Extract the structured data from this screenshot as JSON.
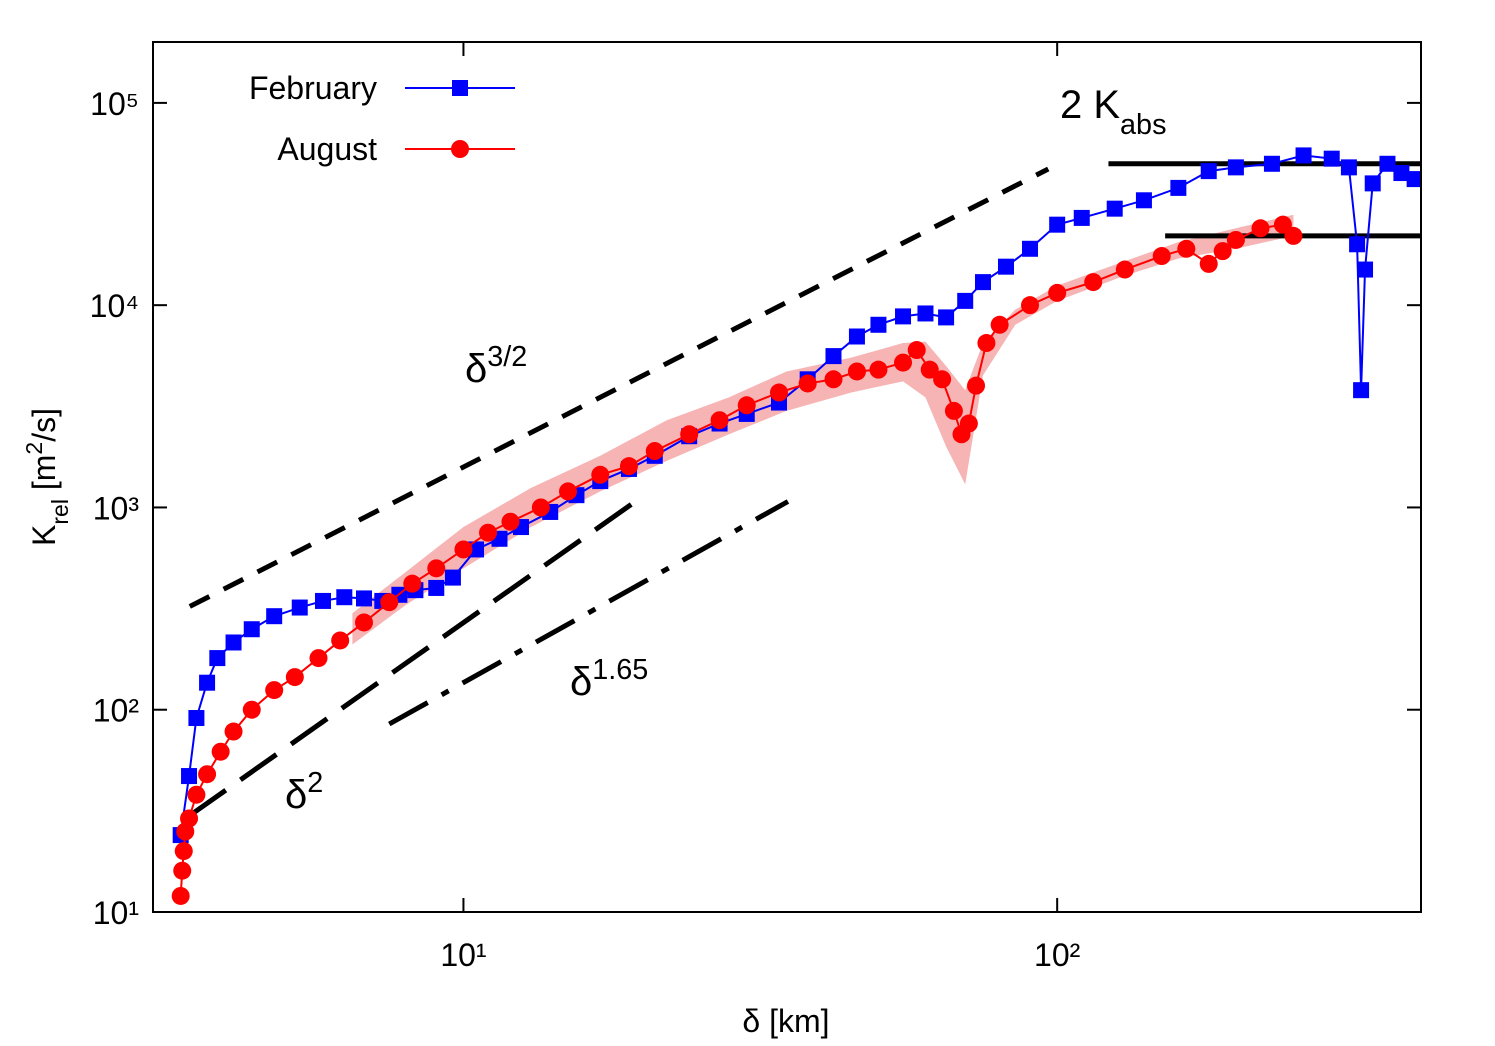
{
  "chart_data": {
    "type": "line",
    "x_label": "δ [km]",
    "y_label": {
      "base": "K",
      "sub": "rel",
      "text": " [m",
      "sup": "2",
      "end": "/s]"
    },
    "xscale": "log",
    "yscale": "log",
    "xlim": [
      3,
      410
    ],
    "ylim": [
      10,
      200000
    ],
    "xticks": [
      {
        "value": 10,
        "label": "10¹"
      },
      {
        "value": 100,
        "label": "10²"
      }
    ],
    "yticks": [
      {
        "value": 10,
        "label": "10¹"
      },
      {
        "value": 100,
        "label": "10²"
      },
      {
        "value": 1000,
        "label": "10³"
      },
      {
        "value": 10000,
        "label": "10⁴"
      },
      {
        "value": 100000,
        "label": "10⁵"
      }
    ],
    "legend": "top-left",
    "series": [
      {
        "name": "February",
        "color": "#0000ff",
        "marker": "square",
        "x": [
          3.34,
          3.45,
          3.55,
          3.7,
          3.85,
          4.1,
          4.4,
          4.8,
          5.3,
          5.8,
          6.3,
          6.8,
          7.3,
          7.8,
          8.3,
          9,
          9.6,
          10.5,
          11.5,
          12.5,
          14,
          15.5,
          17,
          19,
          21,
          24,
          27,
          30,
          34,
          38,
          42,
          46,
          50,
          55,
          60,
          65,
          70,
          75,
          82,
          90,
          100,
          110,
          125,
          140,
          160,
          180,
          200,
          230,
          260,
          290,
          310,
          320,
          325,
          330,
          340,
          360,
          380,
          400
        ],
        "values": [
          24,
          47,
          91,
          136,
          180,
          215,
          250,
          290,
          320,
          345,
          360,
          355,
          345,
          370,
          390,
          400,
          450,
          620,
          700,
          800,
          950,
          1150,
          1350,
          1550,
          1800,
          2250,
          2600,
          2900,
          3300,
          4300,
          5600,
          7000,
          8000,
          8800,
          9100,
          8700,
          10500,
          13000,
          15500,
          19000,
          25000,
          27000,
          30000,
          33000,
          38000,
          46000,
          48000,
          50000,
          55000,
          53000,
          48000,
          20000,
          3800,
          15000,
          40000,
          50000,
          45000,
          42000
        ]
      },
      {
        "name": "August",
        "color": "#ff0000",
        "marker": "circle",
        "x": [
          3.34,
          3.36,
          3.38,
          3.4,
          3.45,
          3.55,
          3.7,
          3.9,
          4.1,
          4.4,
          4.8,
          5.2,
          5.7,
          6.2,
          6.8,
          7.5,
          8.2,
          9,
          10,
          11,
          12,
          13.5,
          15,
          17,
          19,
          21,
          24,
          27,
          30,
          34,
          38,
          42,
          46,
          50,
          55,
          58,
          61,
          64,
          67,
          69,
          71,
          73,
          76,
          80,
          90,
          100,
          115,
          130,
          150,
          165,
          180,
          190,
          200,
          220,
          240,
          250
        ],
        "values": [
          12,
          16,
          20,
          25,
          29,
          38,
          48,
          62,
          78,
          100,
          125,
          145,
          180,
          220,
          270,
          340,
          420,
          500,
          620,
          750,
          850,
          1000,
          1200,
          1450,
          1600,
          1900,
          2300,
          2700,
          3200,
          3700,
          4100,
          4300,
          4700,
          4800,
          5200,
          6000,
          4800,
          4300,
          3000,
          2300,
          2600,
          4000,
          6500,
          8000,
          10000,
          11500,
          13000,
          15000,
          17500,
          19000,
          16000,
          18500,
          21000,
          24000,
          25000,
          22000
        ]
      }
    ],
    "band": {
      "color": "#f6b4b4",
      "x": [
        6.5,
        8,
        10,
        13,
        17,
        22,
        28,
        35,
        45,
        55,
        60,
        65,
        70,
        75,
        85,
        100,
        130,
        160,
        200,
        250
      ],
      "upper": [
        300,
        480,
        800,
        1250,
        1800,
        2700,
        3500,
        4700,
        5500,
        6500,
        6600,
        5000,
        3800,
        6500,
        9500,
        12500,
        16500,
        20500,
        24000,
        28000
      ],
      "lower": [
        210,
        330,
        500,
        800,
        1200,
        1700,
        2300,
        3000,
        3700,
        4200,
        3500,
        2000,
        1300,
        4500,
        8000,
        10500,
        14000,
        17000,
        19000,
        22000
      ]
    },
    "reference_lines": [
      {
        "x": [
          3.46,
          96.6
        ],
        "y": [
          324,
          47100
        ],
        "dash": "dashed",
        "label": {
          "base": "δ",
          "sup": "3/2"
        }
      },
      {
        "x": [
          3.46,
          20
        ],
        "y": [
          30,
          1130
        ],
        "dash": "long-dash",
        "label": {
          "base": "δ",
          "sup": "2"
        }
      },
      {
        "x": [
          7.5,
          35.2
        ],
        "y": [
          85,
          1070
        ],
        "dash": "dash-dot",
        "label": {
          "base": "δ",
          "sup": "1.65"
        }
      },
      {
        "x": [
          122,
          410
        ],
        "y": [
          50000,
          50000
        ],
        "dash": "solid",
        "label": {
          "base": "2 K",
          "sub": "abs"
        }
      },
      {
        "x": [
          152,
          410
        ],
        "y": [
          22000,
          22000
        ],
        "dash": "solid"
      }
    ]
  }
}
